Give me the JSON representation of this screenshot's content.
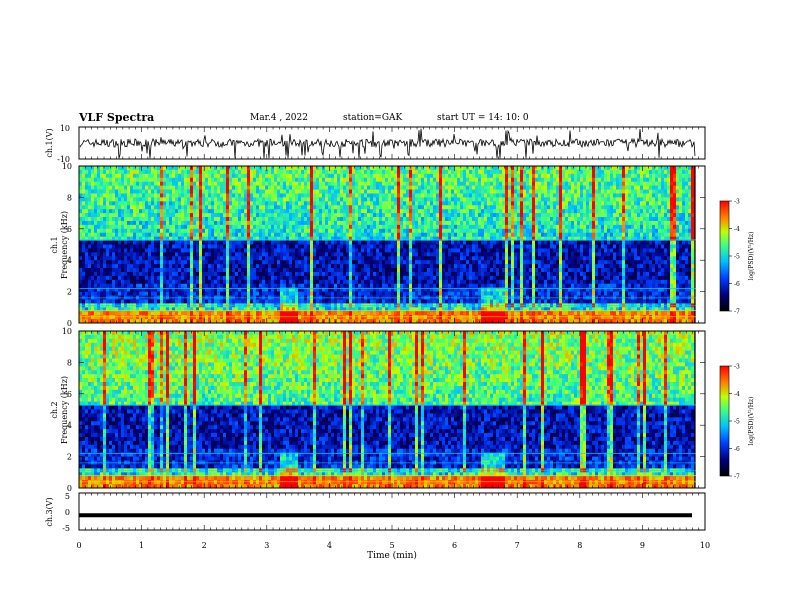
{
  "header": {
    "title": "VLF Spectra",
    "date": "Mar.4 , 2022",
    "station": "station=GAK",
    "start": "start UT =  14: 10: 0"
  },
  "chart_data": [
    {
      "type": "line",
      "panel": "ch1",
      "ylabel": "ch.1(V)",
      "ylim": [
        -10,
        10
      ],
      "yticks": [
        "10",
        "-10"
      ],
      "x_unit": "min",
      "xlim": [
        0,
        9.85
      ],
      "description_values": {
        "baseline_V": 0,
        "typical_amplitude_V": 2.5
      }
    },
    {
      "type": "heatmap",
      "panel": "ch1",
      "ylabel": "ch.1\nFrequency (kHz)",
      "ylim": [
        0,
        10
      ],
      "yticks": [
        "0",
        "2",
        "4",
        "6",
        "8",
        "10"
      ],
      "xlim": [
        0,
        9.85
      ],
      "colorbar": {
        "label": "log(PSD)(V²/Hz)",
        "range": [
          -7,
          -3
        ],
        "ticks": [
          "-3",
          "-4",
          "-5",
          "-6",
          "-7"
        ]
      }
    },
    {
      "type": "heatmap",
      "panel": "ch2",
      "ylabel": "ch.2\nFrequency (kHz)",
      "ylim": [
        0,
        10
      ],
      "yticks": [
        "0",
        "2",
        "4",
        "6",
        "8",
        "10"
      ],
      "xlim": [
        0,
        9.85
      ],
      "colorbar": {
        "label": "log(PSD)(V²/Hz)",
        "range": [
          -7,
          -3
        ],
        "ticks": [
          "-3",
          "-4",
          "-5",
          "-6",
          "-7"
        ]
      }
    },
    {
      "type": "line",
      "panel": "ch3",
      "ylabel": "ch.3(V)",
      "ylim": [
        -5,
        5
      ],
      "yticks": [
        "5",
        "0",
        "-5"
      ],
      "xlim": [
        0,
        9.85
      ],
      "values_V": [
        -1,
        -1
      ],
      "x": [
        0,
        9.85
      ]
    }
  ],
  "xaxis": {
    "label": "Time  (min)",
    "ticks": [
      "0",
      "1",
      "2",
      "3",
      "4",
      "5",
      "6",
      "7",
      "8",
      "9",
      "10"
    ],
    "range": [
      0,
      10
    ]
  },
  "colorbar_label": "log(PSD)(V²/Hz)"
}
